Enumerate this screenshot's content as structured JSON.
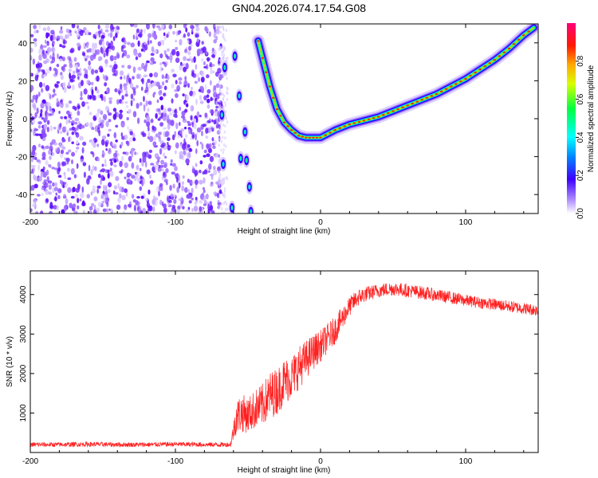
{
  "title": "GN04.2026.074.17.54.G08",
  "chart_data": [
    {
      "type": "heatmap",
      "xlabel": "Height of straight line (km)",
      "ylabel": "Frequency (Hz)",
      "xlim": [
        -200,
        150
      ],
      "ylim": [
        -50,
        50
      ],
      "xticks": [
        -200,
        -100,
        0,
        100
      ],
      "yticks": [
        -40,
        -20,
        0,
        20,
        40
      ],
      "colorbar": {
        "label": "Normalized spectral amplitude",
        "range": [
          0,
          1
        ],
        "ticks": [
          "0.0",
          "0.2",
          "0.4",
          "0.6",
          "0.8"
        ],
        "colormap": "rainbow"
      },
      "regions": [
        {
          "kind": "noise",
          "x_range": [
            -200,
            -67
          ]
        },
        {
          "kind": "sparse-aliased-tones",
          "x_range": [
            -67,
            -40
          ]
        },
        {
          "kind": "tracked-tone",
          "x_range": [
            -40,
            150
          ]
        }
      ],
      "tone_curve": {
        "x": [
          -43,
          -40,
          -35,
          -30,
          -25,
          -20,
          -15,
          -10,
          -5,
          0,
          10,
          20,
          30,
          40,
          50,
          60,
          70,
          80,
          90,
          100,
          110,
          120,
          130,
          140,
          147
        ],
        "y": [
          41,
          32,
          17,
          5,
          -2,
          -6,
          -9,
          -10,
          -10,
          -10,
          -6,
          -3,
          -1,
          1,
          4,
          7,
          10,
          13,
          17,
          21,
          26,
          31,
          37,
          44,
          48
        ]
      },
      "aliased_points": {
        "x": [
          -68,
          -67,
          -66,
          -61,
          -59,
          -56,
          -55,
          -52,
          -51,
          -49,
          -48
        ],
        "y": [
          2,
          -24,
          27,
          -47,
          33,
          12,
          -21,
          -7,
          -22,
          -36,
          -49
        ]
      },
      "grid": false
    },
    {
      "type": "line",
      "xlabel": "Height of straight line (km)",
      "ylabel": "SNR (10 * v/v)",
      "xlim": [
        -200,
        150
      ],
      "ylim": [
        0,
        4600
      ],
      "xticks": [
        -200,
        -100,
        0,
        100
      ],
      "yticks": [
        1000,
        2000,
        3000,
        4000
      ],
      "color": "#ff2020",
      "series": [
        {
          "x": [
            -200,
            -180,
            -160,
            -140,
            -120,
            -100,
            -80,
            -62,
            -58,
            -55,
            -50,
            -45,
            -40,
            -35,
            -30,
            -25,
            -20,
            -15,
            -10,
            -5,
            0,
            5,
            10,
            15,
            20,
            25,
            30,
            40,
            50,
            60,
            70,
            80,
            90,
            100,
            110,
            120,
            130,
            140,
            150
          ],
          "values": [
            200,
            200,
            210,
            200,
            200,
            210,
            200,
            200,
            900,
            1000,
            950,
            1100,
            1200,
            1450,
            1550,
            1800,
            1900,
            2150,
            2350,
            2550,
            2700,
            2900,
            3100,
            3400,
            3700,
            3900,
            4000,
            4100,
            4150,
            4100,
            4050,
            3980,
            3920,
            3850,
            3800,
            3750,
            3700,
            3650,
            3600
          ],
          "noise": [
            60,
            60,
            60,
            60,
            60,
            60,
            60,
            60,
            450,
            500,
            450,
            500,
            550,
            600,
            600,
            600,
            550,
            550,
            500,
            450,
            400,
            380,
            350,
            300,
            250,
            220,
            200,
            180,
            180,
            170,
            170,
            160,
            160,
            150,
            150,
            150,
            150,
            150,
            150
          ]
        }
      ],
      "grid": false
    }
  ]
}
